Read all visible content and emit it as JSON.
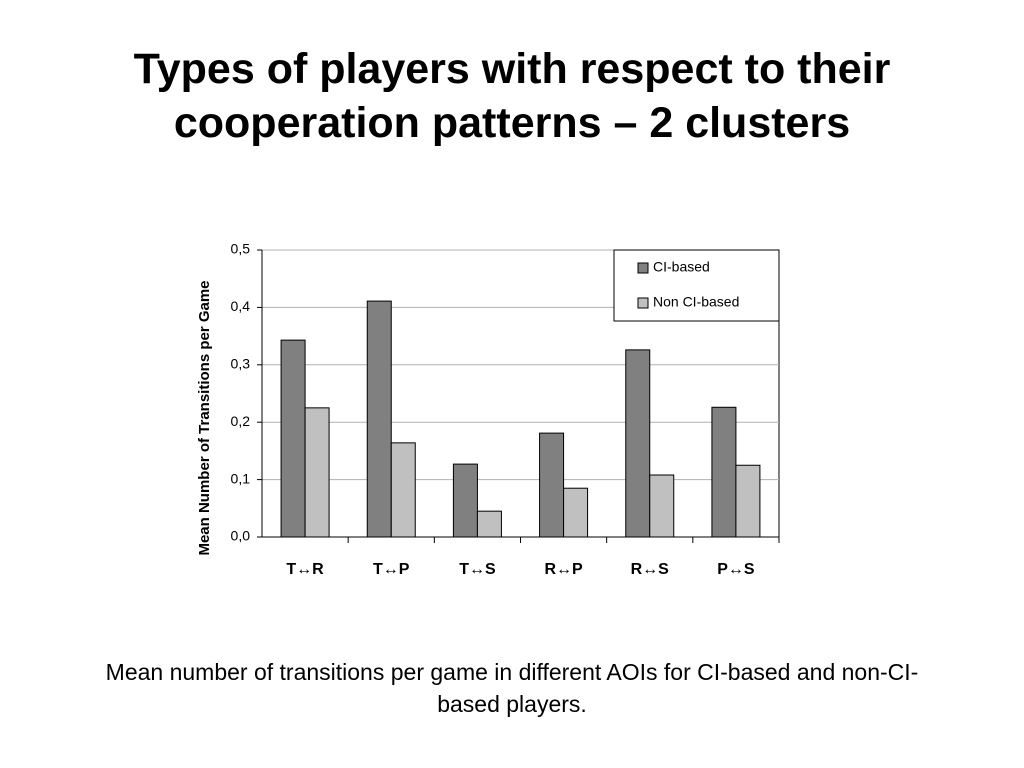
{
  "chart_data": {
    "type": "bar",
    "title": "Types of players with respect to their cooperation patterns – 2 clusters",
    "caption": "Mean number of transitions per game in different AOIs for CI-based and non-CI-based players.",
    "ylabel": "Mean Number of Transitions per Game",
    "categories": [
      "T↔R",
      "T↔P",
      "T↔S",
      "R↔P",
      "R↔S",
      "P↔S"
    ],
    "series": [
      {
        "name": "CI-based",
        "color": "#808080",
        "values": [
          0.343,
          0.411,
          0.127,
          0.181,
          0.326,
          0.226
        ]
      },
      {
        "name": "Non CI-based",
        "color": "#c0c0c0",
        "values": [
          0.225,
          0.164,
          0.045,
          0.085,
          0.108,
          0.125
        ]
      }
    ],
    "ylim": [
      0,
      0.5
    ],
    "yticks": [
      {
        "value": 0,
        "label": "0,0"
      },
      {
        "value": 0.1,
        "label": "0,1"
      },
      {
        "value": 0.2,
        "label": "0,2"
      },
      {
        "value": 0.3,
        "label": "0,3"
      },
      {
        "value": 0.4,
        "label": "0,4"
      },
      {
        "value": 0.5,
        "label": "0,5"
      }
    ],
    "grid": true,
    "legend": "top-right"
  }
}
